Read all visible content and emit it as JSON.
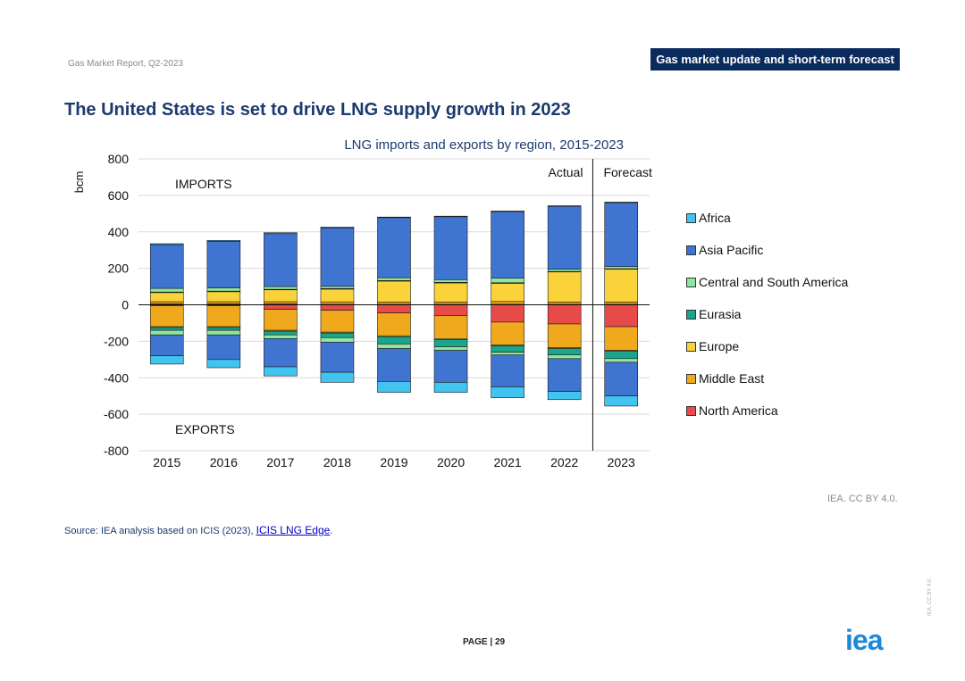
{
  "header": {
    "report_name": "Gas Market Report, Q2-2023",
    "badge": "Gas market update and short-term forecast"
  },
  "page_title": "The United States is set to drive LNG supply growth in 2023",
  "chart_data": {
    "type": "bar",
    "stacked": true,
    "title": "LNG imports and exports by region, 2015-2023",
    "ylabel": "bcm",
    "xlabel": "",
    "ylim": [
      -800,
      800
    ],
    "yticks": [
      800,
      600,
      400,
      200,
      0,
      -200,
      -400,
      -600,
      -800
    ],
    "categories": [
      "2015",
      "2016",
      "2017",
      "2018",
      "2019",
      "2020",
      "2021",
      "2022",
      "2023"
    ],
    "annotations": {
      "imports": "IMPORTS",
      "exports": "EXPORTS",
      "actual": "Actual",
      "forecast": "Forecast"
    },
    "forecast_start_index": 8,
    "grid": true,
    "legend_position": "right",
    "series_order": [
      "North America",
      "Middle East",
      "Europe",
      "Eurasia",
      "Central and South America",
      "Asia Pacific",
      "Africa"
    ],
    "legend_order": [
      "Africa",
      "Asia Pacific",
      "Central and South America",
      "Eurasia",
      "Europe",
      "Middle East",
      "North America"
    ],
    "colors": {
      "Africa": "#41c4f0",
      "Asia Pacific": "#3f74d0",
      "Central and South America": "#8ee6a0",
      "Eurasia": "#1aa58c",
      "Europe": "#fad23a",
      "Middle East": "#f0a91c",
      "North America": "#e84a4a"
    },
    "imports": {
      "North America": [
        5,
        5,
        5,
        3,
        3,
        3,
        3,
        3,
        3
      ],
      "Middle East": [
        12,
        12,
        12,
        13,
        12,
        12,
        15,
        12,
        12
      ],
      "Europe": [
        50,
        55,
        65,
        70,
        115,
        105,
        100,
        165,
        180
      ],
      "Eurasia": [
        3,
        3,
        3,
        3,
        3,
        3,
        3,
        3,
        3
      ],
      "Central and South America": [
        20,
        18,
        15,
        12,
        15,
        15,
        25,
        12,
        12
      ],
      "Asia Pacific": [
        240,
        255,
        290,
        320,
        330,
        345,
        365,
        345,
        350
      ],
      "Africa": [
        5,
        5,
        5,
        5,
        3,
        3,
        3,
        3,
        3
      ]
    },
    "exports": {
      "North America": [
        -5,
        -5,
        -25,
        -30,
        -45,
        -60,
        -95,
        -105,
        -120
      ],
      "Middle East": [
        -115,
        -115,
        -115,
        -120,
        -125,
        -125,
        -125,
        -130,
        -130
      ],
      "Europe": [
        -5,
        -5,
        -5,
        -5,
        -5,
        -5,
        -5,
        -5,
        -5
      ],
      "Eurasia": [
        -15,
        -15,
        -20,
        -25,
        -40,
        -40,
        -35,
        -35,
        -40
      ],
      "Central and South America": [
        -25,
        -25,
        -20,
        -25,
        -25,
        -20,
        -15,
        -20,
        -20
      ],
      "Asia Pacific": [
        -115,
        -135,
        -155,
        -165,
        -180,
        -175,
        -175,
        -180,
        -185
      ],
      "Africa": [
        -45,
        -45,
        -50,
        -55,
        -60,
        -55,
        -60,
        -45,
        -55
      ]
    }
  },
  "legend": [
    {
      "label": "Africa"
    },
    {
      "label": "Asia Pacific"
    },
    {
      "label": "Central and South America"
    },
    {
      "label": "Eurasia"
    },
    {
      "label": "Europe"
    },
    {
      "label": "Middle East"
    },
    {
      "label": "North America"
    }
  ],
  "footer": {
    "credit": "IEA. CC BY 4.0.",
    "source_prefix": "Source: IEA analysis based on ICIS (2023), ",
    "source_link": "ICIS LNG Edge",
    "source_suffix": ".",
    "page_number": "PAGE | 29",
    "logo": "iea",
    "license_vertical": "IEA. CC BY 4.0."
  }
}
